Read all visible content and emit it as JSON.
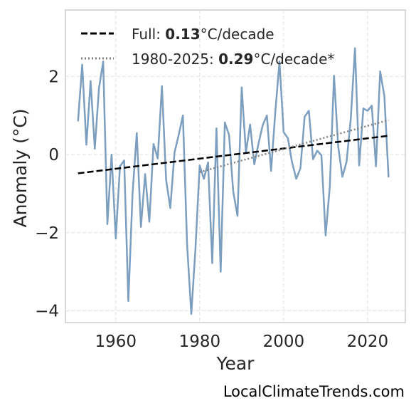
{
  "chart_data": {
    "type": "line",
    "xlabel": "Year",
    "ylabel": "Anomaly (°C)",
    "xlim": [
      1948,
      2029
    ],
    "ylim": [
      -4.3,
      3.7
    ],
    "xticks": [
      1960,
      1980,
      2000,
      2020
    ],
    "yticks": [
      -4,
      -2,
      0,
      2
    ],
    "ytick_labels": [
      "−4",
      "−2",
      "0",
      "2"
    ],
    "grid": true,
    "legend_position": "top-left",
    "series": [
      {
        "color": "#7c9ebf",
        "x": [
          1951,
          1952,
          1953,
          1954,
          1955,
          1956,
          1957,
          1958,
          1959,
          1960,
          1961,
          1962,
          1963,
          1964,
          1965,
          1966,
          1967,
          1968,
          1969,
          1970,
          1971,
          1972,
          1973,
          1974,
          1975,
          1976,
          1977,
          1978,
          1979,
          1980,
          1981,
          1982,
          1983,
          1984,
          1985,
          1986,
          1987,
          1988,
          1989,
          1990,
          1991,
          1992,
          1993,
          1994,
          1995,
          1996,
          1997,
          1998,
          1999,
          2000,
          2001,
          2002,
          2003,
          2004,
          2005,
          2006,
          2007,
          2008,
          2009,
          2010,
          2011,
          2012,
          2013,
          2014,
          2015,
          2016,
          2017,
          2018,
          2019,
          2020,
          2021,
          2022,
          2023,
          2024,
          2025
        ],
        "y": [
          0.85,
          2.3,
          0.25,
          1.88,
          0.15,
          1.7,
          2.38,
          -1.78,
          0.0,
          -2.15,
          -0.3,
          -0.15,
          -3.75,
          -1.0,
          0.55,
          -1.85,
          -0.5,
          -1.72,
          0.27,
          -0.1,
          1.75,
          -0.65,
          -1.37,
          0.05,
          0.5,
          1.0,
          -2.3,
          -4.08,
          -2.4,
          -0.28,
          -0.62,
          -0.2,
          -2.78,
          0.67,
          -3.0,
          0.82,
          0.5,
          -0.95,
          -1.57,
          1.72,
          0.05,
          0.77,
          -0.25,
          0.28,
          0.75,
          1.0,
          -0.42,
          1.08,
          2.38,
          0.57,
          0.42,
          -0.2,
          -0.62,
          -0.35,
          0.97,
          1.12,
          -0.12,
          0.1,
          -0.02,
          -2.07,
          -0.82,
          2.02,
          0.2,
          -0.57,
          -0.18,
          0.92,
          2.72,
          -0.28,
          1.18,
          1.12,
          1.25,
          -0.3,
          2.13,
          1.5,
          -0.58
        ]
      },
      {
        "name_prefix": "Full: ",
        "name_value": "0.13",
        "name_suffix": "°C/decade",
        "style": "dashed",
        "color": "#000000",
        "x": [
          1951,
          2025
        ],
        "y": [
          -0.48,
          0.48
        ]
      },
      {
        "name_prefix": "1980-2025: ",
        "name_value": "0.29",
        "name_suffix": "°C/decade*",
        "style": "dotted",
        "color": "#808080",
        "x": [
          1980,
          2025
        ],
        "y": [
          -0.45,
          0.88
        ]
      }
    ]
  },
  "footer": "LocalClimateTrends.com"
}
